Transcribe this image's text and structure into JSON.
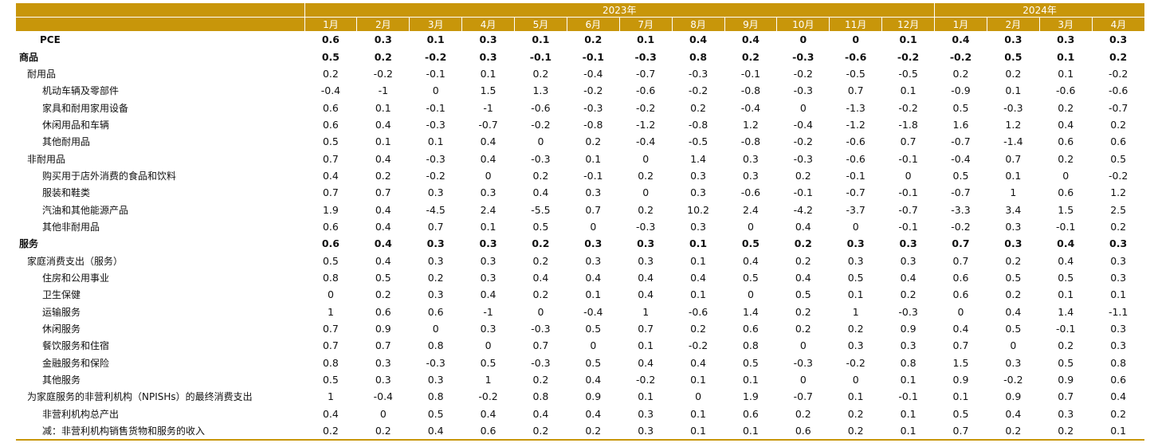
{
  "header": {
    "years": [
      {
        "label": "2023年",
        "span": 12
      },
      {
        "label": "2024年",
        "span": 4
      }
    ],
    "months": [
      "1月",
      "2月",
      "3月",
      "4月",
      "5月",
      "6月",
      "7月",
      "8月",
      "9月",
      "10月",
      "11月",
      "12月",
      "1月",
      "2月",
      "3月",
      "4月"
    ]
  },
  "rows": [
    {
      "name": "PCE",
      "style": "top",
      "bold": true,
      "values": [
        "0.6",
        "0.3",
        "0.1",
        "0.3",
        "0.1",
        "0.2",
        "0.1",
        "0.4",
        "0.4",
        "0",
        "0",
        "0.1",
        "0.4",
        "0.3",
        "0.3",
        "0.3"
      ]
    },
    {
      "name": "商品",
      "style": "l0",
      "bold": true,
      "values": [
        "0.5",
        "0.2",
        "-0.2",
        "0.3",
        "-0.1",
        "-0.1",
        "-0.3",
        "0.8",
        "0.2",
        "-0.3",
        "-0.6",
        "-0.2",
        "-0.2",
        "0.5",
        "0.1",
        "0.2"
      ]
    },
    {
      "name": "耐用品",
      "style": "l1",
      "bold": false,
      "values": [
        "0.2",
        "-0.2",
        "-0.1",
        "0.1",
        "0.2",
        "-0.4",
        "-0.7",
        "-0.3",
        "-0.1",
        "-0.2",
        "-0.5",
        "-0.5",
        "0.2",
        "0.2",
        "0.1",
        "-0.2"
      ]
    },
    {
      "name": "机动车辆及零部件",
      "style": "l2",
      "bold": false,
      "values": [
        "-0.4",
        "-1",
        "0",
        "1.5",
        "1.3",
        "-0.2",
        "-0.6",
        "-0.2",
        "-0.8",
        "-0.3",
        "0.7",
        "0.1",
        "-0.9",
        "0.1",
        "-0.6",
        "-0.6"
      ]
    },
    {
      "name": "家具和耐用家用设备",
      "style": "l2",
      "bold": false,
      "values": [
        "0.6",
        "0.1",
        "-0.1",
        "-1",
        "-0.6",
        "-0.3",
        "-0.2",
        "0.2",
        "-0.4",
        "0",
        "-1.3",
        "-0.2",
        "0.5",
        "-0.3",
        "0.2",
        "-0.7"
      ]
    },
    {
      "name": "休闲用品和车辆",
      "style": "l2",
      "bold": false,
      "values": [
        "0.6",
        "0.4",
        "-0.3",
        "-0.7",
        "-0.2",
        "-0.8",
        "-1.2",
        "-0.8",
        "1.2",
        "-0.4",
        "-1.2",
        "-1.8",
        "1.6",
        "1.2",
        "0.4",
        "0.2"
      ]
    },
    {
      "name": "其他耐用品",
      "style": "l2",
      "bold": false,
      "values": [
        "0.5",
        "0.1",
        "0.1",
        "0.4",
        "0",
        "0.2",
        "-0.4",
        "-0.5",
        "-0.8",
        "-0.2",
        "-0.6",
        "0.7",
        "-0.7",
        "-1.4",
        "0.6",
        "0.6"
      ]
    },
    {
      "name": "非耐用品",
      "style": "l1",
      "bold": false,
      "values": [
        "0.7",
        "0.4",
        "-0.3",
        "0.4",
        "-0.3",
        "0.1",
        "0",
        "1.4",
        "0.3",
        "-0.3",
        "-0.6",
        "-0.1",
        "-0.4",
        "0.7",
        "0.2",
        "0.5"
      ]
    },
    {
      "name": "购买用于店外消费的食品和饮料",
      "style": "l2",
      "bold": false,
      "values": [
        "0.4",
        "0.2",
        "-0.2",
        "0",
        "0.2",
        "-0.1",
        "0.2",
        "0.3",
        "0.3",
        "0.2",
        "-0.1",
        "0",
        "0.5",
        "0.1",
        "0",
        "-0.2"
      ]
    },
    {
      "name": "服装和鞋类",
      "style": "l2",
      "bold": false,
      "values": [
        "0.7",
        "0.7",
        "0.3",
        "0.3",
        "0.4",
        "0.3",
        "0",
        "0.3",
        "-0.6",
        "-0.1",
        "-0.7",
        "-0.1",
        "-0.7",
        "1",
        "0.6",
        "1.2"
      ]
    },
    {
      "name": "汽油和其他能源产品",
      "style": "l2",
      "bold": false,
      "values": [
        "1.9",
        "0.4",
        "-4.5",
        "2.4",
        "-5.5",
        "0.7",
        "0.2",
        "10.2",
        "2.4",
        "-4.2",
        "-3.7",
        "-0.7",
        "-3.3",
        "3.4",
        "1.5",
        "2.5"
      ]
    },
    {
      "name": "其他非耐用品",
      "style": "l2",
      "bold": false,
      "values": [
        "0.6",
        "0.4",
        "0.7",
        "0.1",
        "0.5",
        "0",
        "-0.3",
        "0.3",
        "0",
        "0.4",
        "0",
        "-0.1",
        "-0.2",
        "0.3",
        "-0.1",
        "0.2"
      ]
    },
    {
      "name": "服务",
      "style": "l0",
      "bold": true,
      "values": [
        "0.6",
        "0.4",
        "0.3",
        "0.3",
        "0.2",
        "0.3",
        "0.3",
        "0.1",
        "0.5",
        "0.2",
        "0.3",
        "0.3",
        "0.7",
        "0.3",
        "0.4",
        "0.3"
      ]
    },
    {
      "name": "家庭消费支出（服务）",
      "style": "l1",
      "bold": false,
      "values": [
        "0.5",
        "0.4",
        "0.3",
        "0.3",
        "0.2",
        "0.3",
        "0.3",
        "0.1",
        "0.4",
        "0.2",
        "0.3",
        "0.3",
        "0.7",
        "0.2",
        "0.4",
        "0.3"
      ]
    },
    {
      "name": "住房和公用事业",
      "style": "l2",
      "bold": false,
      "values": [
        "0.8",
        "0.5",
        "0.2",
        "0.3",
        "0.4",
        "0.4",
        "0.4",
        "0.4",
        "0.5",
        "0.4",
        "0.5",
        "0.4",
        "0.6",
        "0.5",
        "0.5",
        "0.3"
      ]
    },
    {
      "name": "卫生保健",
      "style": "l2",
      "bold": false,
      "values": [
        "0",
        "0.2",
        "0.3",
        "0.4",
        "0.2",
        "0.1",
        "0.4",
        "0.1",
        "0",
        "0.5",
        "0.1",
        "0.2",
        "0.6",
        "0.2",
        "0.1",
        "0.1"
      ]
    },
    {
      "name": "运输服务",
      "style": "l2",
      "bold": false,
      "values": [
        "1",
        "0.6",
        "0.6",
        "-1",
        "0",
        "-0.4",
        "1",
        "-0.6",
        "1.4",
        "0.2",
        "1",
        "-0.3",
        "0",
        "0.4",
        "1.4",
        "-1.1"
      ]
    },
    {
      "name": "休闲服务",
      "style": "l2",
      "bold": false,
      "values": [
        "0.7",
        "0.9",
        "0",
        "0.3",
        "-0.3",
        "0.5",
        "0.7",
        "0.2",
        "0.6",
        "0.2",
        "0.2",
        "0.9",
        "0.4",
        "0.5",
        "-0.1",
        "0.3"
      ]
    },
    {
      "name": "餐饮服务和住宿",
      "style": "l2",
      "bold": false,
      "values": [
        "0.7",
        "0.7",
        "0.8",
        "0",
        "0.7",
        "0",
        "0.1",
        "-0.2",
        "0.8",
        "0",
        "0.3",
        "0.3",
        "0.7",
        "0",
        "0.2",
        "0.3"
      ]
    },
    {
      "name": "金融服务和保险",
      "style": "l2",
      "bold": false,
      "values": [
        "0.8",
        "0.3",
        "-0.3",
        "0.5",
        "-0.3",
        "0.5",
        "0.4",
        "0.4",
        "0.5",
        "-0.3",
        "-0.2",
        "0.8",
        "1.5",
        "0.3",
        "0.5",
        "0.8"
      ]
    },
    {
      "name": "其他服务",
      "style": "l2",
      "bold": false,
      "values": [
        "0.5",
        "0.3",
        "0.3",
        "1",
        "0.2",
        "0.4",
        "-0.2",
        "0.1",
        "0.1",
        "0",
        "0",
        "0.1",
        "0.9",
        "-0.2",
        "0.9",
        "0.6"
      ]
    },
    {
      "name": "为家庭服务的非营利机构（NPISHs）的最终消费支出",
      "style": "l1",
      "bold": false,
      "values": [
        "1",
        "-0.4",
        "0.8",
        "-0.2",
        "0.8",
        "0.9",
        "0.1",
        "0",
        "1.9",
        "-0.7",
        "0.1",
        "-0.1",
        "0.1",
        "0.9",
        "0.7",
        "0.4"
      ]
    },
    {
      "name": "非营利机构总产出",
      "style": "l2",
      "bold": false,
      "values": [
        "0.4",
        "0",
        "0.5",
        "0.4",
        "0.4",
        "0.4",
        "0.3",
        "0.1",
        "0.6",
        "0.2",
        "0.2",
        "0.1",
        "0.5",
        "0.4",
        "0.3",
        "0.2"
      ]
    },
    {
      "name": "减：非营利机构销售货物和服务的收入",
      "style": "l2",
      "bold": false,
      "values": [
        "0.2",
        "0.2",
        "0.4",
        "0.6",
        "0.2",
        "0.2",
        "0.3",
        "0.1",
        "0.1",
        "0.6",
        "0.2",
        "0.1",
        "0.7",
        "0.2",
        "0.2",
        "0.1"
      ]
    }
  ]
}
